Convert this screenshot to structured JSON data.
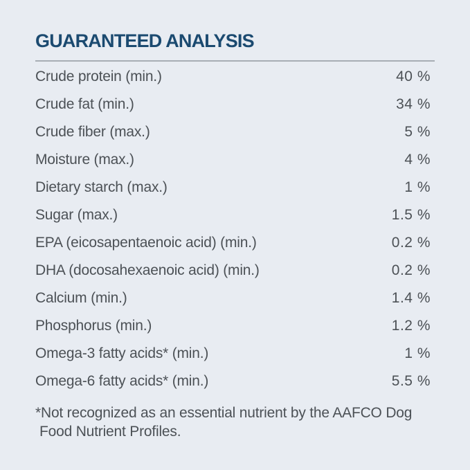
{
  "theme": {
    "bg": "#e8ecf2",
    "title": "#1b4a70",
    "rule": "#a7adb4",
    "text": "#4c5156"
  },
  "panel": {
    "title": "GUARANTEED ANALYSIS",
    "rows": [
      {
        "label": "Crude protein (min.)",
        "value": "40 %"
      },
      {
        "label": "Crude fat (min.)",
        "value": "34 %"
      },
      {
        "label": "Crude fiber (max.)",
        "value": "5 %"
      },
      {
        "label": "Moisture (max.)",
        "value": "4 %"
      },
      {
        "label": "Dietary starch (max.)",
        "value": "1 %"
      },
      {
        "label": "Sugar (max.)",
        "value": "1.5 %"
      },
      {
        "label": "EPA (eicosapentaenoic acid) (min.)",
        "value": "0.2 %"
      },
      {
        "label": "DHA (docosahexaenoic acid) (min.)",
        "value": "0.2 %"
      },
      {
        "label": "Calcium (min.)",
        "value": "1.4 %"
      },
      {
        "label": "Phosphorus (min.)",
        "value": "1.2 %"
      },
      {
        "label": "Omega-3 fatty acids* (min.)",
        "value": "1 %"
      },
      {
        "label": "Omega-6 fatty acids* (min.)",
        "value": "5.5 %"
      }
    ],
    "footnote_line1": "*Not recognized as an essential nutrient by the AAFCO Dog",
    "footnote_line2": "Food Nutrient Profiles."
  }
}
